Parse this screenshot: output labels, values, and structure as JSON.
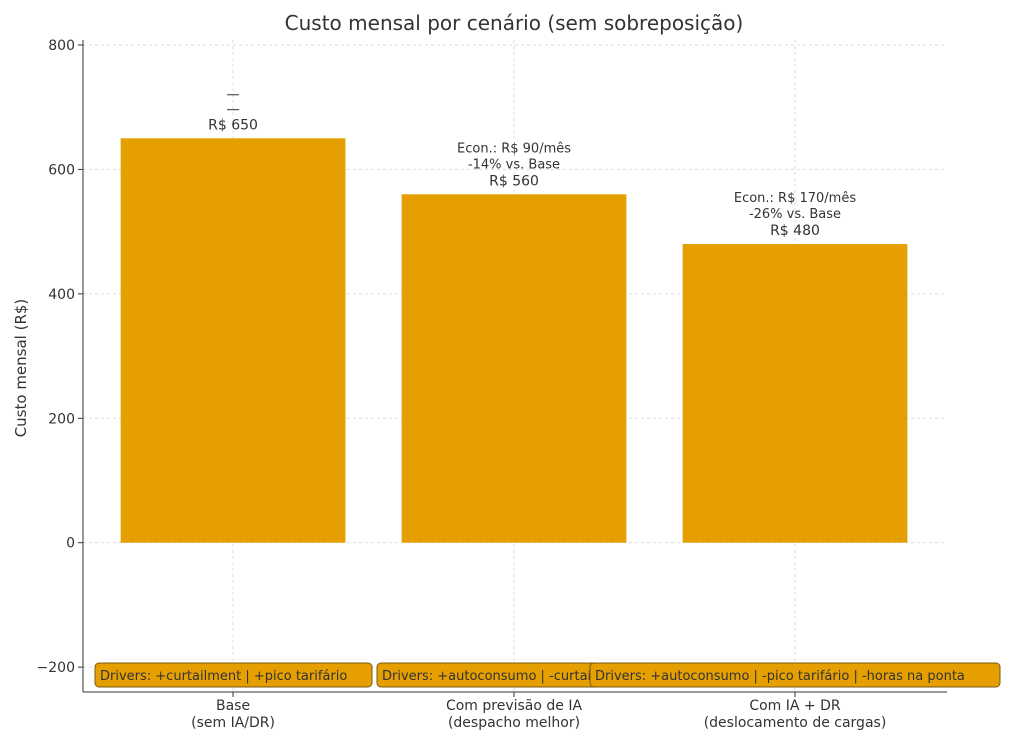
{
  "chart_data": {
    "type": "bar",
    "title": "Custo mensal por cenário (sem sobreposição)",
    "xlabel": "",
    "ylabel": "Custo mensal (R$)",
    "ylim": [
      -240,
      808
    ],
    "yticks": [
      -200,
      0,
      200,
      400,
      600,
      800
    ],
    "ytick_labels": [
      "−200",
      "0",
      "200",
      "400",
      "600",
      "800"
    ],
    "grid": true,
    "categories": [
      [
        "Base",
        "(sem IA/DR)"
      ],
      [
        "Com previsão de IA",
        "(despacho melhor)"
      ],
      [
        "Com IA + DR",
        "(deslocamento de cargas)"
      ]
    ],
    "values": [
      650,
      560,
      480
    ],
    "bar_color": "#E69F00",
    "value_labels": [
      "R$ 650",
      "R$ 560",
      "R$ 480"
    ],
    "savings_labels": [
      null,
      [
        "Econ.: R$ 90/mês",
        "-14% vs. Base"
      ],
      [
        "Econ.: R$ 170/mês",
        "-26% vs. Base"
      ]
    ],
    "error_marks": [
      [
        696,
        720
      ],
      null,
      null
    ],
    "driver_labels": [
      "Drivers: +curtailment | +pico tarifário",
      "Drivers: +autoconsumo | -curtailment",
      "Drivers: +autoconsumo | -pico tarifário | -horas na ponta"
    ]
  }
}
